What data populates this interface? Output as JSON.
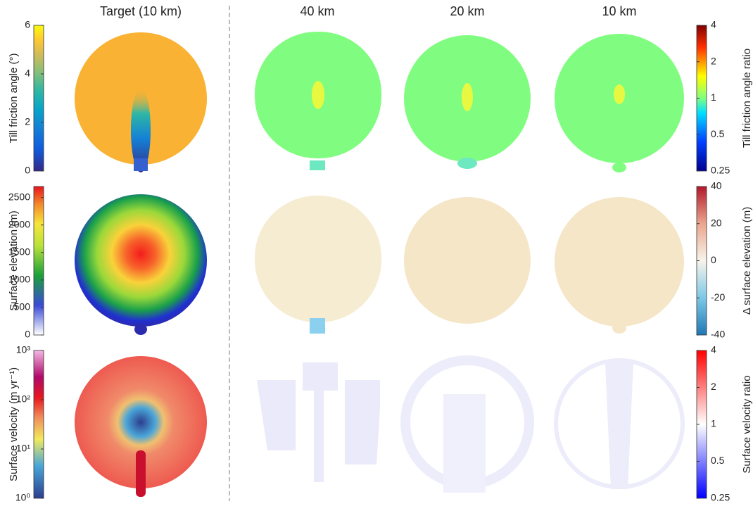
{
  "columns": [
    "Target (10 km)",
    "40 km",
    "20 km",
    "10 km"
  ],
  "rows": [
    {
      "left_colorbar": {
        "label": "Till friction angle (°)",
        "lim": [
          0,
          6
        ],
        "ticks": [
          0,
          2,
          4,
          6
        ],
        "log": false
      },
      "right_colorbar": {
        "label": "Till friction angle ratio",
        "lim": [
          0.25,
          4
        ],
        "ticks": [
          0.25,
          0.5,
          1,
          2,
          4
        ],
        "log": true
      }
    },
    {
      "left_colorbar": {
        "label": "Surface elevation (m)",
        "lim": [
          0,
          2700
        ],
        "ticks": [
          0,
          500,
          1000,
          1500,
          2000,
          2500
        ],
        "log": false
      },
      "right_colorbar": {
        "label": "Δ surface elevation (m)",
        "lim": [
          -40,
          40
        ],
        "ticks": [
          -40,
          -20,
          0,
          20,
          40
        ],
        "log": false
      }
    },
    {
      "left_colorbar": {
        "label": "Surface velocity (m yr⁻¹)",
        "lim": [
          1,
          1000
        ],
        "ticks": [
          {
            "value": 1,
            "label": "10⁰"
          },
          {
            "value": 10,
            "label": "10¹"
          },
          {
            "value": 100,
            "label": "10²"
          },
          {
            "value": 1000,
            "label": "10³"
          }
        ],
        "log": true
      },
      "right_colorbar": {
        "label": "Surface velocity ratio",
        "lim": [
          0.25,
          4
        ],
        "ticks": [
          0.25,
          0.5,
          1,
          2,
          4
        ],
        "log": true
      }
    }
  ]
}
